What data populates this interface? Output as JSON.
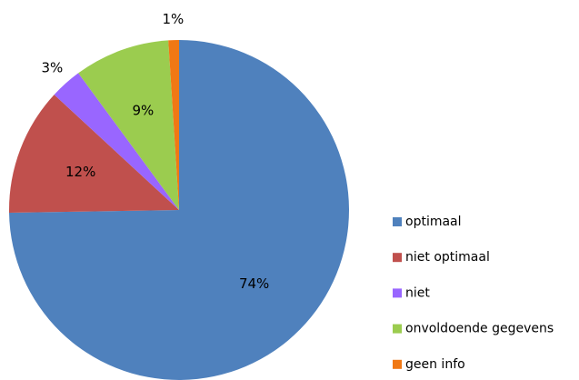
{
  "chart_data": {
    "type": "pie",
    "categories": [
      "optimaal",
      "niet optimaal",
      "niet",
      "onvoldoende gegevens",
      "geen info"
    ],
    "values": [
      74,
      12,
      3,
      9,
      1
    ],
    "value_labels": [
      "74%",
      "12%",
      "3%",
      "9%",
      "1%"
    ],
    "colors": [
      "#4f81bd",
      "#c0504d",
      "#9966ff",
      "#9bcc4f",
      "#f07814"
    ],
    "legend": "right"
  }
}
